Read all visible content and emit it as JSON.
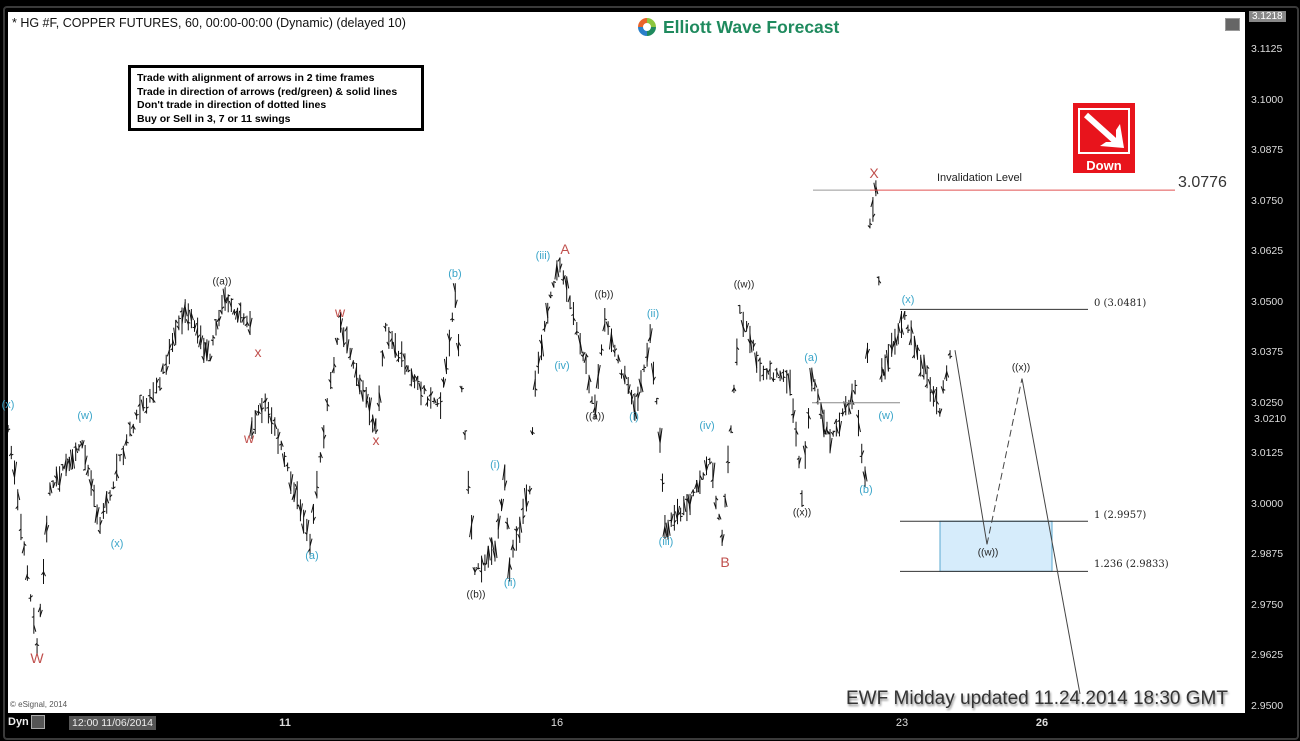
{
  "header": {
    "title": "* HG #F, COPPER FUTURES, 60, 00:00-00:00 (Dynamic) (delayed 10)",
    "logo_text": "Elliott Wave Forecast"
  },
  "rules_box": [
    "Trade with alignment of arrows in 2 time frames",
    "Trade in direction of arrows (red/green) & solid lines",
    "Don't trade in direction of dotted lines",
    "Buy or Sell in 3, 7 or 11 swings"
  ],
  "signal": {
    "label": "Down",
    "icon": "arrow-down-right-icon",
    "color": "#e8141c"
  },
  "invalidation": {
    "label": "Invalidation Level",
    "value": "3.0776"
  },
  "fib_levels": [
    "0 (3.0481)",
    "1 (2.9957)",
    "1.236 (2.9833)"
  ],
  "footer": {
    "update": "EWF Midday updated 11.24.2014 18:30 GMT",
    "copyright": "© eSignal, 2014"
  },
  "x_axis": {
    "mode": "Dyn",
    "start_label": "12:00 11/06/2014",
    "ticks": [
      "11",
      "16",
      "23",
      "26"
    ]
  },
  "colors": {
    "wave_minor": "#3aa5c9",
    "wave_major": "#c0504d",
    "wave_intermediate": "#222222",
    "target_box": "#d6ecfb"
  },
  "wave_labels": [
    {
      "text": "(x)",
      "color": "c"
    },
    {
      "text": "W",
      "color": "r"
    },
    {
      "text": "(w)",
      "color": "c"
    },
    {
      "text": "(x)",
      "color": "c"
    },
    {
      "text": "((a))",
      "color": "k"
    },
    {
      "text": "x",
      "color": "r"
    },
    {
      "text": "w",
      "color": "r"
    },
    {
      "text": "(a)",
      "color": "c"
    },
    {
      "text": "w",
      "color": "r"
    },
    {
      "text": "x",
      "color": "r"
    },
    {
      "text": "(b)",
      "color": "c"
    },
    {
      "text": "((b))",
      "color": "k"
    },
    {
      "text": "(i)",
      "color": "c"
    },
    {
      "text": "(ii)",
      "color": "c"
    },
    {
      "text": "(iii)",
      "color": "c"
    },
    {
      "text": "A",
      "color": "r"
    },
    {
      "text": "(iv)",
      "color": "c"
    },
    {
      "text": "((b))",
      "color": "k"
    },
    {
      "text": "((a))",
      "color": "k"
    },
    {
      "text": "(ii)",
      "color": "c"
    },
    {
      "text": "(i)",
      "color": "c"
    },
    {
      "text": "(iii)",
      "color": "c"
    },
    {
      "text": "(iv)",
      "color": "c"
    },
    {
      "text": "B",
      "color": "r"
    },
    {
      "text": "((w))",
      "color": "k"
    },
    {
      "text": "(a)",
      "color": "c"
    },
    {
      "text": "((x))",
      "color": "k"
    },
    {
      "text": "(b)",
      "color": "c"
    },
    {
      "text": "(w)",
      "color": "c"
    },
    {
      "text": "X",
      "color": "r"
    },
    {
      "text": "(x)",
      "color": "c"
    },
    {
      "text": "((x))",
      "color": "k"
    },
    {
      "text": "((w))",
      "color": "k"
    }
  ],
  "chart_data": {
    "type": "ohlc-bar",
    "xlabel": "",
    "ylabel": "",
    "ylim": [
      2.9475,
      3.1218
    ],
    "y_ticks": [
      "3.1125",
      "3.1000",
      "3.0875",
      "3.0750",
      "3.0625",
      "3.0500",
      "3.0375",
      "3.0250",
      "3.0125",
      "3.0000",
      "2.9875",
      "2.9750",
      "2.9625",
      "2.9500"
    ],
    "y_top_label": "3.1218",
    "last_price": "3.0210",
    "x_unit": "day of November 2014",
    "swing_pivots": [
      [
        4.98,
        3.0195
      ],
      [
        5.61,
        2.9638
      ],
      [
        5.89,
        3.0034
      ],
      [
        6.59,
        3.0158
      ],
      [
        6.98,
        2.9948
      ],
      [
        7.63,
        3.0183
      ],
      [
        8.28,
        3.0306
      ],
      [
        8.83,
        3.0479
      ],
      [
        9.37,
        3.0356
      ],
      [
        9.63,
        3.0504
      ],
      [
        10.24,
        3.0455
      ],
      [
        10.28,
        3.0183
      ],
      [
        10.57,
        3.0257
      ],
      [
        11.46,
        2.9911
      ],
      [
        11.84,
        3.0306
      ],
      [
        12.02,
        3.0442
      ],
      [
        12.67,
        3.0183
      ],
      [
        12.85,
        3.043
      ],
      [
        13.5,
        3.0281
      ],
      [
        13.86,
        3.0232
      ],
      [
        14.13,
        3.0516
      ],
      [
        14.49,
        2.9824
      ],
      [
        14.86,
        2.9886
      ],
      [
        15.04,
        3.0059
      ],
      [
        15.13,
        2.9849
      ],
      [
        15.5,
        3.0034
      ],
      [
        15.6,
        3.0306
      ],
      [
        15.83,
        3.0479
      ],
      [
        16.06,
        3.0603
      ],
      [
        16.47,
        3.0405
      ],
      [
        16.77,
        3.0232
      ],
      [
        16.97,
        3.0455
      ],
      [
        17.58,
        3.0232
      ],
      [
        17.89,
        3.0418
      ],
      [
        18.09,
        3.0158
      ],
      [
        18.19,
        2.9935
      ],
      [
        18.7,
        3.0009
      ],
      [
        19.1,
        3.0108
      ],
      [
        19.35,
        2.9911
      ],
      [
        19.71,
        3.0479
      ],
      [
        20.12,
        3.0331
      ],
      [
        20.73,
        3.0306
      ],
      [
        20.97,
        3.0022
      ],
      [
        21.17,
        3.0306
      ],
      [
        21.54,
        3.0158
      ],
      [
        22.05,
        3.0281
      ],
      [
        22.25,
        3.0059
      ],
      [
        22.35,
        3.0702
      ],
      [
        22.47,
        3.0776
      ],
      [
        22.59,
        3.0331
      ],
      [
        23.06,
        3.0455
      ],
      [
        23.81,
        3.0232
      ],
      [
        24.03,
        3.038
      ],
      [
        24.13,
        3.0207
      ]
    ],
    "projection": {
      "solid_to_w": 2.99,
      "dashed_to_x": 3.031,
      "solid_to": 2.953
    },
    "levels": {
      "invalidation": 3.0776,
      "fib_0": 3.0481,
      "fib_1": 2.9957,
      "fib_1236": 2.9833,
      "w_level": 3.025
    }
  }
}
